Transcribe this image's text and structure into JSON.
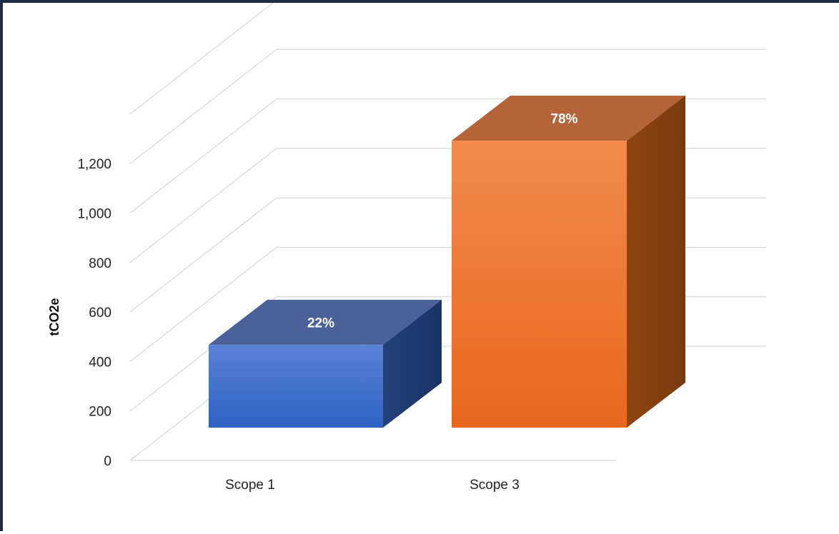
{
  "chart_data": {
    "type": "bar",
    "title": "",
    "xlabel": "",
    "ylabel": "tCO2e",
    "categories": [
      "Scope 1",
      "Scope 3"
    ],
    "values": [
      335,
      1160
    ],
    "data_labels": [
      "22%",
      "78%"
    ],
    "yticks": [
      "0",
      "200",
      "400",
      "600",
      "800",
      "1,000",
      "1,200"
    ],
    "ylim": [
      0,
      1400
    ],
    "grid": true,
    "style": "3d",
    "colors": {
      "scope1_front_top": "#5b82d6",
      "scope1_front_bottom": "#2e62c2",
      "scope1_top": "#4a6299",
      "scope1_side": "#23417a",
      "scope3_front_top": "#f28a4e",
      "scope3_front_bottom": "#e8681c",
      "scope3_top": "#b5643a",
      "scope3_side": "#8f4412",
      "grid": "#d9d9d9"
    }
  }
}
